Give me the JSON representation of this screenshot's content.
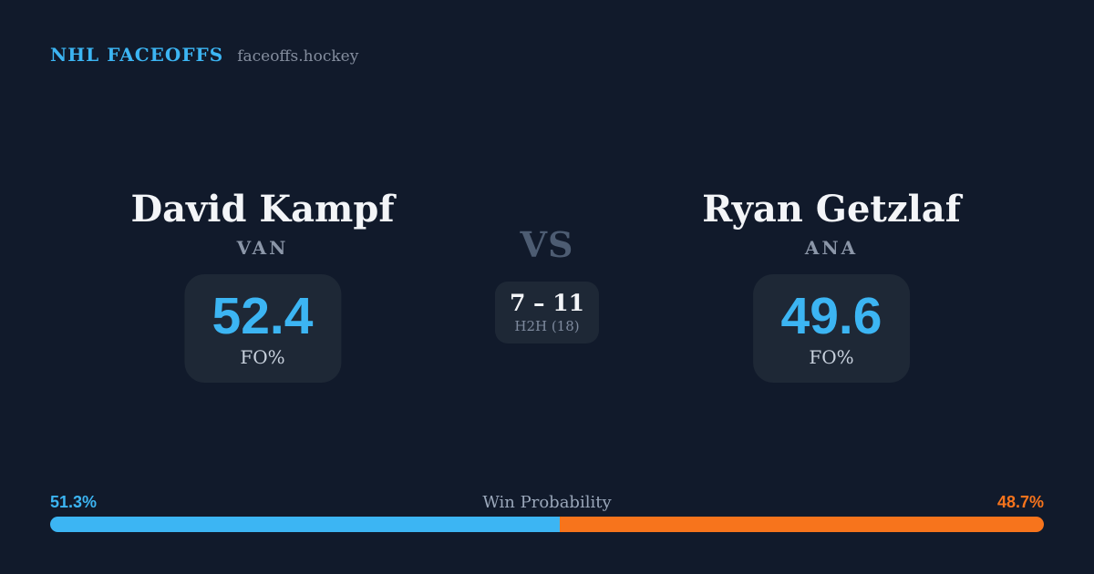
{
  "theme": {
    "bg": "#111a2b",
    "surface": "#1e2836",
    "accent_blue": "#3cb5f3",
    "accent_orange": "#f7741c",
    "text_primary": "#f3f5f8",
    "text_team": "#8b96a8",
    "text_stat_label": "#c9d2de",
    "text_vs": "#4d5c72",
    "text_h2h": "#7e8a9e",
    "text_title": "#9aa7ba",
    "text_domain": "#848d9e"
  },
  "header": {
    "brand": "NHL FACEOFFS",
    "domain": "faceoffs.hockey"
  },
  "matchup": {
    "player1": {
      "name": "David Kampf",
      "team": "VAN",
      "stat_value": "52.4",
      "stat_label": "FO%"
    },
    "vs_label": "VS",
    "h2h": {
      "record": "7 – 11",
      "label": "H2H (18)"
    },
    "player2": {
      "name": "Ryan Getzlaf",
      "team": "ANA",
      "stat_value": "49.6",
      "stat_label": "FO%"
    }
  },
  "win_probability": {
    "title": "Win Probability",
    "left_pct": "51.3%",
    "right_pct": "48.7%",
    "left_width": "51.3%"
  },
  "chart_data": {
    "type": "bar",
    "subtype": "stacked-horizontal-single-row",
    "title": "Win Probability",
    "categories": [
      "David Kampf (VAN)",
      "Ryan Getzlaf (ANA)"
    ],
    "values": [
      51.3,
      48.7
    ],
    "value_labels": [
      "51.3%",
      "48.7%"
    ],
    "colors": [
      "#3cb5f3",
      "#f7741c"
    ],
    "xlim": [
      0,
      100
    ],
    "grid": false,
    "legend": false,
    "related_stats": {
      "faceoff_pct": {
        "David Kampf": 52.4,
        "Ryan Getzlaf": 49.6
      },
      "head_to_head": {
        "record": "7 – 11",
        "total_matchups": 18
      }
    }
  }
}
